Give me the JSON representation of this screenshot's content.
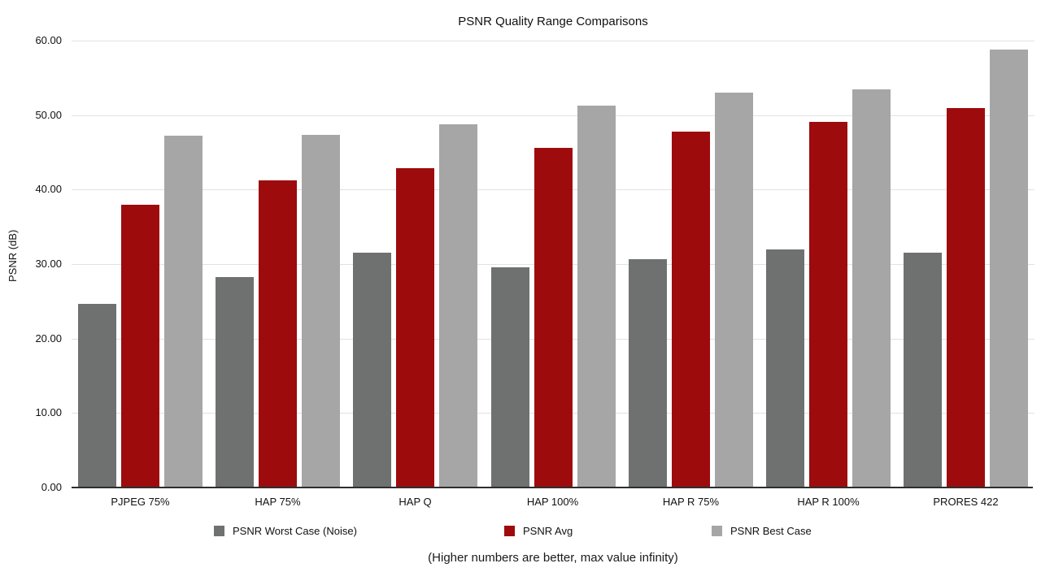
{
  "title": "PSNR Quality Range Comparisons",
  "caption": "(Higher numbers are better, max value infinity)",
  "y_axis_title": "PSNR (dB)",
  "chart_data": {
    "type": "bar",
    "title": "PSNR Quality Range Comparisons",
    "xlabel": "",
    "ylabel": "PSNR (dB)",
    "ylim": [
      0,
      60
    ],
    "ytick_step": 10,
    "ytick_labels": [
      "0.00",
      "10.00",
      "20.00",
      "30.00",
      "40.00",
      "50.00",
      "60.00"
    ],
    "grid": true,
    "legend_position": "bottom",
    "annotation": "(Higher numbers are better, max value infinity)",
    "categories": [
      "PJPEG 75%",
      "HAP 75%",
      "HAP Q",
      "HAP 100%",
      "HAP R 75%",
      "HAP R 100%",
      "PRORES 422"
    ],
    "series": [
      {
        "name": "PSNR Worst Case (Noise)",
        "color": "#6e7170",
        "values": [
          24.7,
          28.3,
          31.5,
          29.6,
          30.7,
          32.0,
          31.5
        ]
      },
      {
        "name": "PSNR Avg",
        "color": "#9e0b0c",
        "values": [
          38.0,
          41.2,
          42.9,
          45.6,
          47.8,
          49.1,
          50.9
        ]
      },
      {
        "name": "PSNR Best Case",
        "color": "#a6a6a6",
        "values": [
          47.2,
          47.4,
          48.8,
          51.3,
          53.0,
          53.5,
          58.8
        ]
      }
    ]
  },
  "colors": {
    "gridline": "#e2e2e2",
    "axis_line": "#2e2e2e",
    "text": "#111111"
  },
  "legend_layout": {
    "item_lefts": [
      263,
      620,
      875
    ]
  }
}
